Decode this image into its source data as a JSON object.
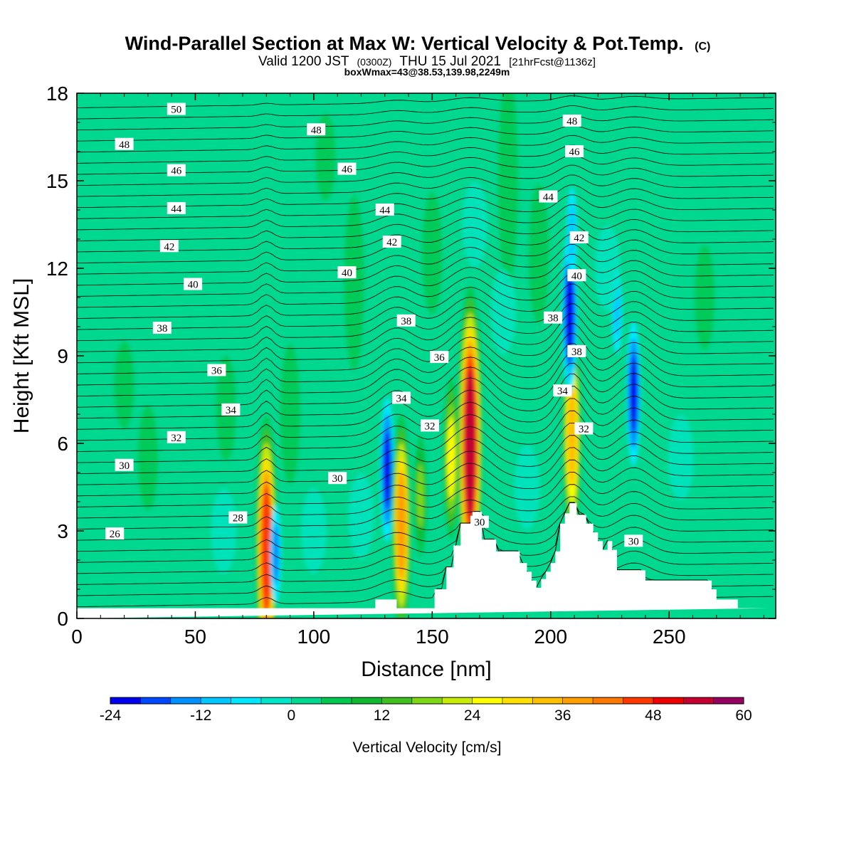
{
  "chart_data": {
    "type": "heatmap",
    "title": "Wind-Parallel Section at Max W: Vertical Velocity & Pot.Temp.",
    "title_mark": "(C)",
    "subtitle_parts": [
      "Valid 1200 JST",
      "(0300Z)",
      "THU 15 Jul 2021",
      "[21hrFcst@1136z]"
    ],
    "note": "boxWmax=43@38.53,139.98,2249m",
    "xlabel": "Distance [nm]",
    "ylabel": "Height [Kft MSL]",
    "xlim": [
      0,
      295
    ],
    "ylim": [
      0,
      18
    ],
    "x_ticks": [
      0,
      50,
      100,
      150,
      200,
      250
    ],
    "y_ticks": [
      0,
      3,
      6,
      9,
      12,
      15,
      18
    ],
    "colorbar": {
      "title": "Vertical Velocity [cm/s]",
      "range": [
        -24,
        60
      ],
      "step": 4,
      "tick_values": [
        -24,
        -12,
        0,
        12,
        24,
        36,
        48,
        60
      ],
      "colors": [
        "#0000ee",
        "#0048ff",
        "#0090ff",
        "#00c8ff",
        "#00e8ff",
        "#00e6c8",
        "#00d890",
        "#00c850",
        "#10b832",
        "#40c020",
        "#80d814",
        "#c8ec08",
        "#ffff00",
        "#ffe000",
        "#ffc000",
        "#ffa000",
        "#ff7800",
        "#ff3800",
        "#ee0000",
        "#c40030",
        "#960060"
      ]
    },
    "background_color": "#00d890",
    "theta_contours": {
      "description": "Potential temperature isolines labelled every 2 units",
      "labels": [
        {
          "text": "50",
          "x": 42,
          "z": 17.45
        },
        {
          "text": "48",
          "x": 20,
          "z": 16.25
        },
        {
          "text": "48",
          "x": 101,
          "z": 16.75
        },
        {
          "text": "48",
          "x": 209,
          "z": 17.05
        },
        {
          "text": "46",
          "x": 42,
          "z": 15.35
        },
        {
          "text": "46",
          "x": 114,
          "z": 15.4
        },
        {
          "text": "46",
          "x": 210,
          "z": 16.0
        },
        {
          "text": "44",
          "x": 42,
          "z": 14.05
        },
        {
          "text": "44",
          "x": 130,
          "z": 14.0
        },
        {
          "text": "44",
          "x": 199,
          "z": 14.45
        },
        {
          "text": "42",
          "x": 39,
          "z": 12.75
        },
        {
          "text": "42",
          "x": 133,
          "z": 12.9
        },
        {
          "text": "42",
          "x": 212,
          "z": 13.05
        },
        {
          "text": "40",
          "x": 49,
          "z": 11.45
        },
        {
          "text": "40",
          "x": 114,
          "z": 11.85
        },
        {
          "text": "40",
          "x": 211,
          "z": 11.75
        },
        {
          "text": "38",
          "x": 36,
          "z": 9.95
        },
        {
          "text": "38",
          "x": 139,
          "z": 10.2
        },
        {
          "text": "38",
          "x": 201,
          "z": 10.3
        },
        {
          "text": "38",
          "x": 211,
          "z": 9.15
        },
        {
          "text": "36",
          "x": 59,
          "z": 8.5
        },
        {
          "text": "36",
          "x": 153,
          "z": 8.95
        },
        {
          "text": "34",
          "x": 65,
          "z": 7.15
        },
        {
          "text": "34",
          "x": 137,
          "z": 7.55
        },
        {
          "text": "34",
          "x": 205,
          "z": 7.8
        },
        {
          "text": "32",
          "x": 42,
          "z": 6.2
        },
        {
          "text": "32",
          "x": 149,
          "z": 6.6
        },
        {
          "text": "32",
          "x": 214,
          "z": 6.5
        },
        {
          "text": "30",
          "x": 20,
          "z": 5.25
        },
        {
          "text": "30",
          "x": 110,
          "z": 4.8
        },
        {
          "text": "30",
          "x": 170,
          "z": 3.3
        },
        {
          "text": "30",
          "x": 235,
          "z": 2.65
        },
        {
          "text": "28",
          "x": 68,
          "z": 3.45
        },
        {
          "text": "26",
          "x": 16,
          "z": 2.9
        }
      ]
    },
    "vertical_velocity_features": [
      {
        "x": 80,
        "z": 2.4,
        "w": 45,
        "kind": "updraft"
      },
      {
        "x": 84,
        "z": 2.2,
        "w": -14,
        "kind": "downdraft"
      },
      {
        "x": 131,
        "z": 5.1,
        "w": -22,
        "kind": "downdraft"
      },
      {
        "x": 137,
        "z": 3.2,
        "w": 36,
        "kind": "updraft"
      },
      {
        "x": 145,
        "z": 4.2,
        "w": 16,
        "kind": "updraft"
      },
      {
        "x": 158,
        "z": 5.5,
        "w": 24,
        "kind": "updraft"
      },
      {
        "x": 166,
        "z": 6.0,
        "w": 55,
        "kind": "updraft"
      },
      {
        "x": 209,
        "z": 6.3,
        "w": 34,
        "kind": "updraft"
      },
      {
        "x": 208,
        "z": 10.5,
        "w": -24,
        "kind": "downdraft"
      },
      {
        "x": 209,
        "z": 13.2,
        "w": -12,
        "kind": "downdraft"
      },
      {
        "x": 235,
        "z": 7.7,
        "w": -22,
        "kind": "downdraft"
      },
      {
        "x": 228,
        "z": 10.5,
        "w": -10,
        "kind": "downdraft"
      }
    ],
    "terrain_profile": {
      "x": [
        0,
        126,
        126,
        135,
        135,
        151,
        151,
        156,
        156,
        159,
        159,
        162,
        162,
        167,
        167,
        171,
        171,
        177,
        177,
        187,
        187,
        190,
        190,
        192,
        192,
        194,
        194,
        196,
        196,
        198,
        198,
        200,
        200,
        202,
        202,
        204,
        204,
        206,
        206,
        208,
        208,
        211,
        211,
        215,
        215,
        218,
        218,
        220,
        220,
        222,
        222,
        224,
        224,
        226,
        226,
        228,
        228,
        237,
        237,
        240,
        240,
        268,
        268,
        270,
        270,
        272,
        272,
        274,
        274,
        279,
        279,
        292,
        292,
        295
      ],
      "z": [
        0.35,
        0.35,
        0.65,
        0.65,
        0.35,
        0.35,
        1.0,
        1.0,
        1.75,
        1.75,
        2.5,
        2.5,
        3.25,
        3.25,
        3.65,
        3.65,
        2.7,
        2.7,
        2.3,
        2.3,
        1.9,
        1.9,
        1.6,
        1.6,
        1.3,
        1.3,
        1.05,
        1.05,
        1.35,
        1.35,
        1.6,
        1.6,
        1.9,
        1.9,
        2.3,
        2.3,
        3.25,
        3.25,
        3.6,
        3.6,
        3.95,
        3.95,
        3.55,
        3.55,
        3.25,
        3.25,
        2.95,
        2.95,
        2.65,
        2.65,
        2.35,
        2.35,
        2.65,
        2.65,
        2.35,
        2.35,
        1.65,
        1.65,
        1.65,
        1.65,
        1.3,
        1.3,
        1.0,
        1.0,
        0.65,
        0.65,
        0.65,
        0.65,
        0.65,
        0.65,
        0.35,
        0.35,
        0.35
      ]
    }
  }
}
